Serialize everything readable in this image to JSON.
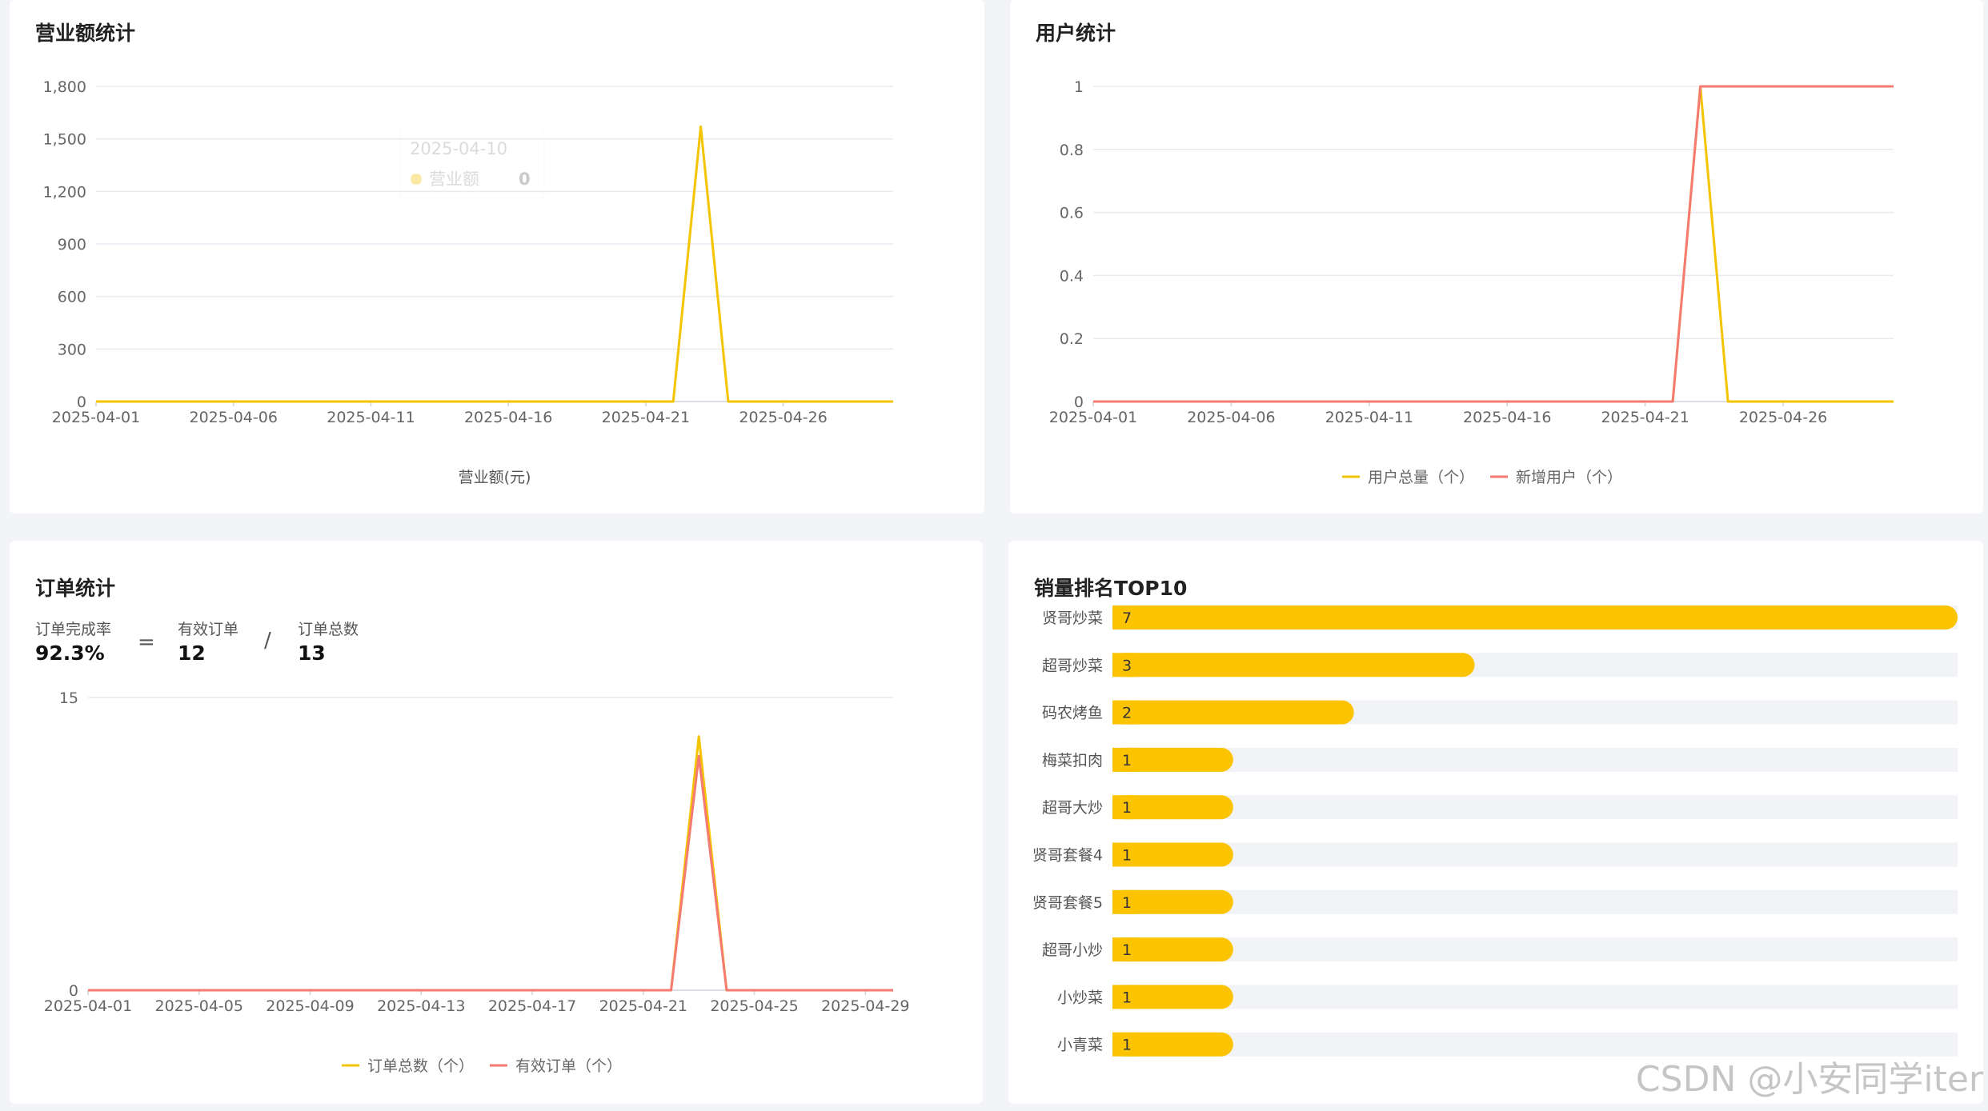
{
  "revenue": {
    "title": "营业额统计",
    "tooltip": {
      "date": "2025-04-10",
      "series": "营业额",
      "value": "0"
    },
    "chart_data": {
      "type": "line",
      "x": [
        "2025-04-01",
        "2025-04-02",
        "2025-04-03",
        "2025-04-04",
        "2025-04-05",
        "2025-04-06",
        "2025-04-07",
        "2025-04-08",
        "2025-04-09",
        "2025-04-10",
        "2025-04-11",
        "2025-04-12",
        "2025-04-13",
        "2025-04-14",
        "2025-04-15",
        "2025-04-16",
        "2025-04-17",
        "2025-04-18",
        "2025-04-19",
        "2025-04-20",
        "2025-04-21",
        "2025-04-22",
        "2025-04-23",
        "2025-04-24",
        "2025-04-25",
        "2025-04-26",
        "2025-04-27",
        "2025-04-28",
        "2025-04-29",
        "2025-04-30"
      ],
      "x_tick_labels": [
        "2025-04-01",
        "2025-04-06",
        "2025-04-11",
        "2025-04-16",
        "2025-04-21",
        "2025-04-26"
      ],
      "y_tick_labels": [
        "0",
        "300",
        "600",
        "900",
        "1,200",
        "1,500",
        "1,800"
      ],
      "ylim": [
        0,
        1800
      ],
      "series": [
        {
          "name": "营业额(元)",
          "color": "#f5c400",
          "values": [
            0,
            0,
            0,
            0,
            0,
            0,
            0,
            0,
            0,
            0,
            0,
            0,
            0,
            0,
            0,
            0,
            0,
            0,
            0,
            0,
            0,
            0,
            1570,
            0,
            0,
            0,
            0,
            0,
            0,
            0
          ]
        }
      ],
      "xlabel": "",
      "ylabel": "",
      "grid": true,
      "legend": "bottom"
    }
  },
  "users": {
    "title": "用户统计",
    "chart_data": {
      "type": "line",
      "x": [
        "2025-04-01",
        "2025-04-02",
        "2025-04-03",
        "2025-04-04",
        "2025-04-05",
        "2025-04-06",
        "2025-04-07",
        "2025-04-08",
        "2025-04-09",
        "2025-04-10",
        "2025-04-11",
        "2025-04-12",
        "2025-04-13",
        "2025-04-14",
        "2025-04-15",
        "2025-04-16",
        "2025-04-17",
        "2025-04-18",
        "2025-04-19",
        "2025-04-20",
        "2025-04-21",
        "2025-04-22",
        "2025-04-23",
        "2025-04-24",
        "2025-04-25",
        "2025-04-26",
        "2025-04-27",
        "2025-04-28",
        "2025-04-29",
        "2025-04-30"
      ],
      "x_tick_labels": [
        "2025-04-01",
        "2025-04-06",
        "2025-04-11",
        "2025-04-16",
        "2025-04-21",
        "2025-04-26"
      ],
      "y_tick_labels": [
        "0",
        "0.2",
        "0.4",
        "0.6",
        "0.8",
        "1"
      ],
      "ylim": [
        0,
        1
      ],
      "series": [
        {
          "name": "用户总量（个）",
          "color": "#f5c400",
          "values": [
            0,
            0,
            0,
            0,
            0,
            0,
            0,
            0,
            0,
            0,
            0,
            0,
            0,
            0,
            0,
            0,
            0,
            0,
            0,
            0,
            0,
            0,
            1,
            0,
            0,
            0,
            0,
            0,
            0,
            0
          ]
        },
        {
          "name": "新增用户（个）",
          "color": "#f47a72",
          "values": [
            0,
            0,
            0,
            0,
            0,
            0,
            0,
            0,
            0,
            0,
            0,
            0,
            0,
            0,
            0,
            0,
            0,
            0,
            0,
            0,
            0,
            0,
            1,
            1,
            1,
            1,
            1,
            1,
            1,
            1
          ]
        }
      ],
      "xlabel": "",
      "ylabel": "",
      "grid": true,
      "legend": "bottom"
    }
  },
  "orders": {
    "title": "订单统计",
    "stats": {
      "rate_label": "订单完成率",
      "rate_value": "92.3%",
      "equals": "=",
      "valid_label": "有效订单",
      "valid_value": "12",
      "divide": "/",
      "total_label": "订单总数",
      "total_value": "13"
    },
    "chart_data": {
      "type": "line",
      "x": [
        "2025-04-01",
        "2025-04-02",
        "2025-04-03",
        "2025-04-04",
        "2025-04-05",
        "2025-04-06",
        "2025-04-07",
        "2025-04-08",
        "2025-04-09",
        "2025-04-10",
        "2025-04-11",
        "2025-04-12",
        "2025-04-13",
        "2025-04-14",
        "2025-04-15",
        "2025-04-16",
        "2025-04-17",
        "2025-04-18",
        "2025-04-19",
        "2025-04-20",
        "2025-04-21",
        "2025-04-22",
        "2025-04-23",
        "2025-04-24",
        "2025-04-25",
        "2025-04-26",
        "2025-04-27",
        "2025-04-28",
        "2025-04-29",
        "2025-04-30"
      ],
      "x_tick_labels": [
        "2025-04-01",
        "2025-04-05",
        "2025-04-09",
        "2025-04-13",
        "2025-04-17",
        "2025-04-21",
        "2025-04-25",
        "2025-04-29"
      ],
      "y_tick_labels": [
        "0",
        "15"
      ],
      "ylim": [
        0,
        15
      ],
      "series": [
        {
          "name": "订单总数（个）",
          "color": "#f5c400",
          "values": [
            0,
            0,
            0,
            0,
            0,
            0,
            0,
            0,
            0,
            0,
            0,
            0,
            0,
            0,
            0,
            0,
            0,
            0,
            0,
            0,
            0,
            0,
            13,
            0,
            0,
            0,
            0,
            0,
            0,
            0
          ]
        },
        {
          "name": "有效订单（个）",
          "color": "#f47a72",
          "values": [
            0,
            0,
            0,
            0,
            0,
            0,
            0,
            0,
            0,
            0,
            0,
            0,
            0,
            0,
            0,
            0,
            0,
            0,
            0,
            0,
            0,
            0,
            12,
            0,
            0,
            0,
            0,
            0,
            0,
            0
          ]
        }
      ],
      "xlabel": "",
      "ylabel": "",
      "grid": true,
      "legend": "bottom"
    }
  },
  "top10": {
    "title": "销量排名TOP10",
    "chart_data": {
      "type": "bar",
      "orientation": "horizontal",
      "categories": [
        "贤哥炒菜",
        "超哥炒菜",
        "码农烤鱼",
        "梅菜扣肉",
        "超哥大炒",
        "贤哥套餐4",
        "贤哥套餐5",
        "超哥小炒",
        "小炒菜",
        "小青菜"
      ],
      "values": [
        7,
        3,
        2,
        1,
        1,
        1,
        1,
        1,
        1,
        1
      ],
      "xlim": [
        0,
        7
      ],
      "bar_color": "#fcc400",
      "track_color": "#f2f3f7"
    }
  },
  "watermark": "CSDN @小安同学iter"
}
